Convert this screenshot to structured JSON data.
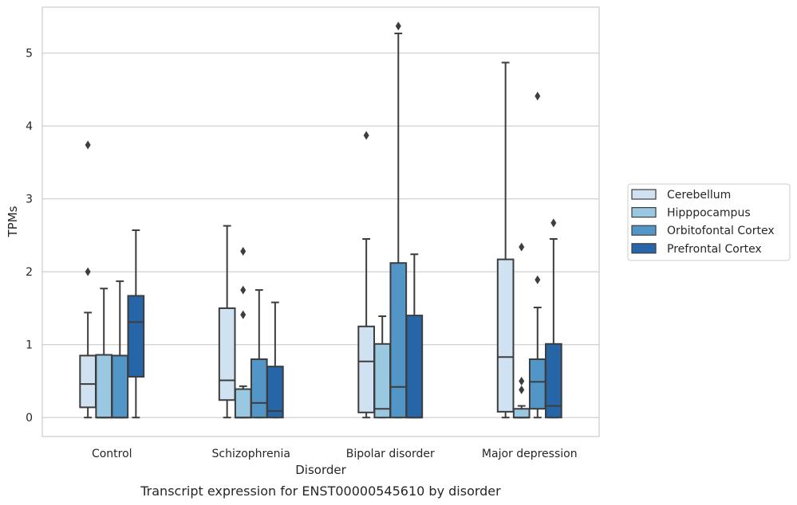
{
  "chart_data": {
    "type": "box",
    "title": "",
    "caption": "Transcript expression for ENST00000545610 by disorder",
    "xlabel": "Disorder",
    "ylabel": "TPMs",
    "ylim": [
      -0.26,
      5.63
    ],
    "yticks": [
      0,
      1,
      2,
      3,
      4,
      5
    ],
    "grid": "horizontal",
    "legend_position": "right",
    "categories": [
      "Control",
      "Schizophrenia",
      "Bipolar disorder",
      "Major depression"
    ],
    "series": [
      {
        "name": "Cerebellum",
        "color": "#d0e1f2",
        "boxes": [
          {
            "whisker_low": 0,
            "q1": 0.14,
            "median": 0.46,
            "q3": 0.85,
            "whisker_high": 1.44,
            "outliers": [
              2.0,
              3.74
            ]
          },
          {
            "whisker_low": 0,
            "q1": 0.24,
            "median": 0.51,
            "q3": 1.5,
            "whisker_high": 2.63,
            "outliers": []
          },
          {
            "whisker_low": 0,
            "q1": 0.07,
            "median": 0.77,
            "q3": 1.25,
            "whisker_high": 2.45,
            "outliers": [
              3.87
            ]
          },
          {
            "whisker_low": 0,
            "q1": 0.08,
            "median": 0.83,
            "q3": 2.17,
            "whisker_high": 4.87,
            "outliers": []
          }
        ]
      },
      {
        "name": "Hipppocampus",
        "color": "#9ac8e0",
        "boxes": [
          {
            "whisker_low": 0,
            "q1": 0,
            "median": 0,
            "q3": 0.86,
            "whisker_high": 1.77,
            "outliers": []
          },
          {
            "whisker_low": 0,
            "q1": 0,
            "median": 0,
            "q3": 0.39,
            "whisker_high": 0.43,
            "outliers": [
              1.41,
              1.75,
              2.28
            ]
          },
          {
            "whisker_low": 0,
            "q1": 0,
            "median": 0.12,
            "q3": 1.01,
            "whisker_high": 1.39,
            "outliers": []
          },
          {
            "whisker_low": 0,
            "q1": 0,
            "median": 0,
            "q3": 0.12,
            "whisker_high": 0.16,
            "outliers": [
              0.38,
              0.5,
              2.34
            ]
          }
        ]
      },
      {
        "name": "Orbitofontal Cortex",
        "color": "#5296c8",
        "boxes": [
          {
            "whisker_low": 0,
            "q1": 0,
            "median": 0,
            "q3": 0.85,
            "whisker_high": 1.87,
            "outliers": []
          },
          {
            "whisker_low": 0,
            "q1": 0,
            "median": 0.2,
            "q3": 0.8,
            "whisker_high": 1.75,
            "outliers": []
          },
          {
            "whisker_low": 0,
            "q1": 0,
            "median": 0.42,
            "q3": 2.12,
            "whisker_high": 5.27,
            "outliers": [
              5.37
            ]
          },
          {
            "whisker_low": 0,
            "q1": 0.12,
            "median": 0.49,
            "q3": 0.8,
            "whisker_high": 1.51,
            "outliers": [
              1.89,
              4.41
            ]
          }
        ]
      },
      {
        "name": "Prefrontal Cortex",
        "color": "#2666a8",
        "boxes": [
          {
            "whisker_low": 0,
            "q1": 0.56,
            "median": 1.31,
            "q3": 1.67,
            "whisker_high": 2.57,
            "outliers": []
          },
          {
            "whisker_low": 0,
            "q1": 0,
            "median": 0.09,
            "q3": 0.7,
            "whisker_high": 1.58,
            "outliers": []
          },
          {
            "whisker_low": 0,
            "q1": 0,
            "median": 0,
            "q3": 1.4,
            "whisker_high": 2.24,
            "outliers": []
          },
          {
            "whisker_low": 0,
            "q1": 0,
            "median": 0.16,
            "q3": 1.01,
            "whisker_high": 2.45,
            "outliers": [
              2.67
            ]
          }
        ]
      }
    ]
  }
}
